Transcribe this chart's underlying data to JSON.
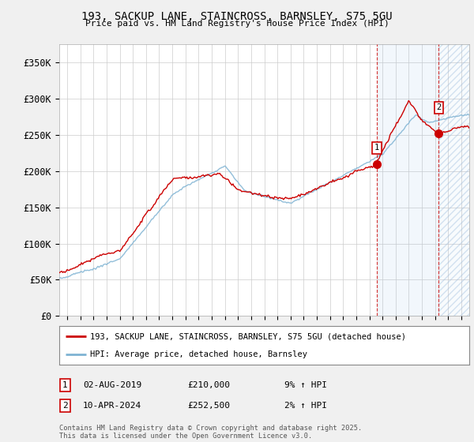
{
  "title": "193, SACKUP LANE, STAINCROSS, BARNSLEY, S75 5GU",
  "subtitle": "Price paid vs. HM Land Registry's House Price Index (HPI)",
  "legend_label_red": "193, SACKUP LANE, STAINCROSS, BARNSLEY, S75 5GU (detached house)",
  "legend_label_blue": "HPI: Average price, detached house, Barnsley",
  "footer": "Contains HM Land Registry data © Crown copyright and database right 2025.\nThis data is licensed under the Open Government Licence v3.0.",
  "sale1_date": "02-AUG-2019",
  "sale1_price": "£210,000",
  "sale1_hpi": "9% ↑ HPI",
  "sale2_date": "10-APR-2024",
  "sale2_price": "£252,500",
  "sale2_hpi": "2% ↑ HPI",
  "ylim": [
    0,
    375000
  ],
  "yticks": [
    0,
    50000,
    100000,
    150000,
    200000,
    250000,
    300000,
    350000
  ],
  "ytick_labels": [
    "£0",
    "£50K",
    "£100K",
    "£150K",
    "£200K",
    "£250K",
    "£300K",
    "£350K"
  ],
  "xlim_start": 1995.4,
  "xlim_end": 2026.6,
  "background_color": "#f0f0f0",
  "plot_bg_color": "#ffffff",
  "red_color": "#cc0000",
  "blue_color": "#7fb3d3",
  "sale1_year": 2019.58,
  "sale1_value": 210000,
  "sale2_year": 2024.27,
  "sale2_value": 252500,
  "shade_start": 2019.58,
  "shade_end": 2024.27
}
